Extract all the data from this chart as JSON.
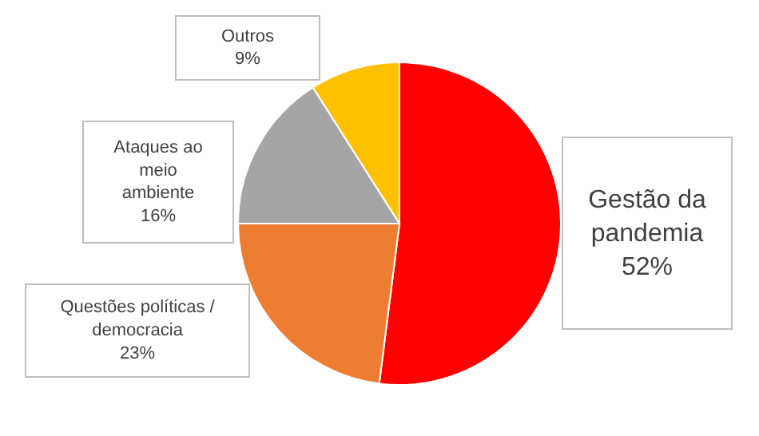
{
  "chart_data": {
    "type": "pie",
    "categories": [
      "Gestão da pandemia",
      "Questões políticas / democracia",
      "Ataques ao meio ambiente",
      "Outros"
    ],
    "values": [
      52,
      23,
      16,
      9
    ],
    "value_labels": [
      "52%",
      "23%",
      "16%",
      "9%"
    ],
    "colors": [
      "#ff0000",
      "#ed7d31",
      "#a5a5a5",
      "#ffc000"
    ]
  }
}
